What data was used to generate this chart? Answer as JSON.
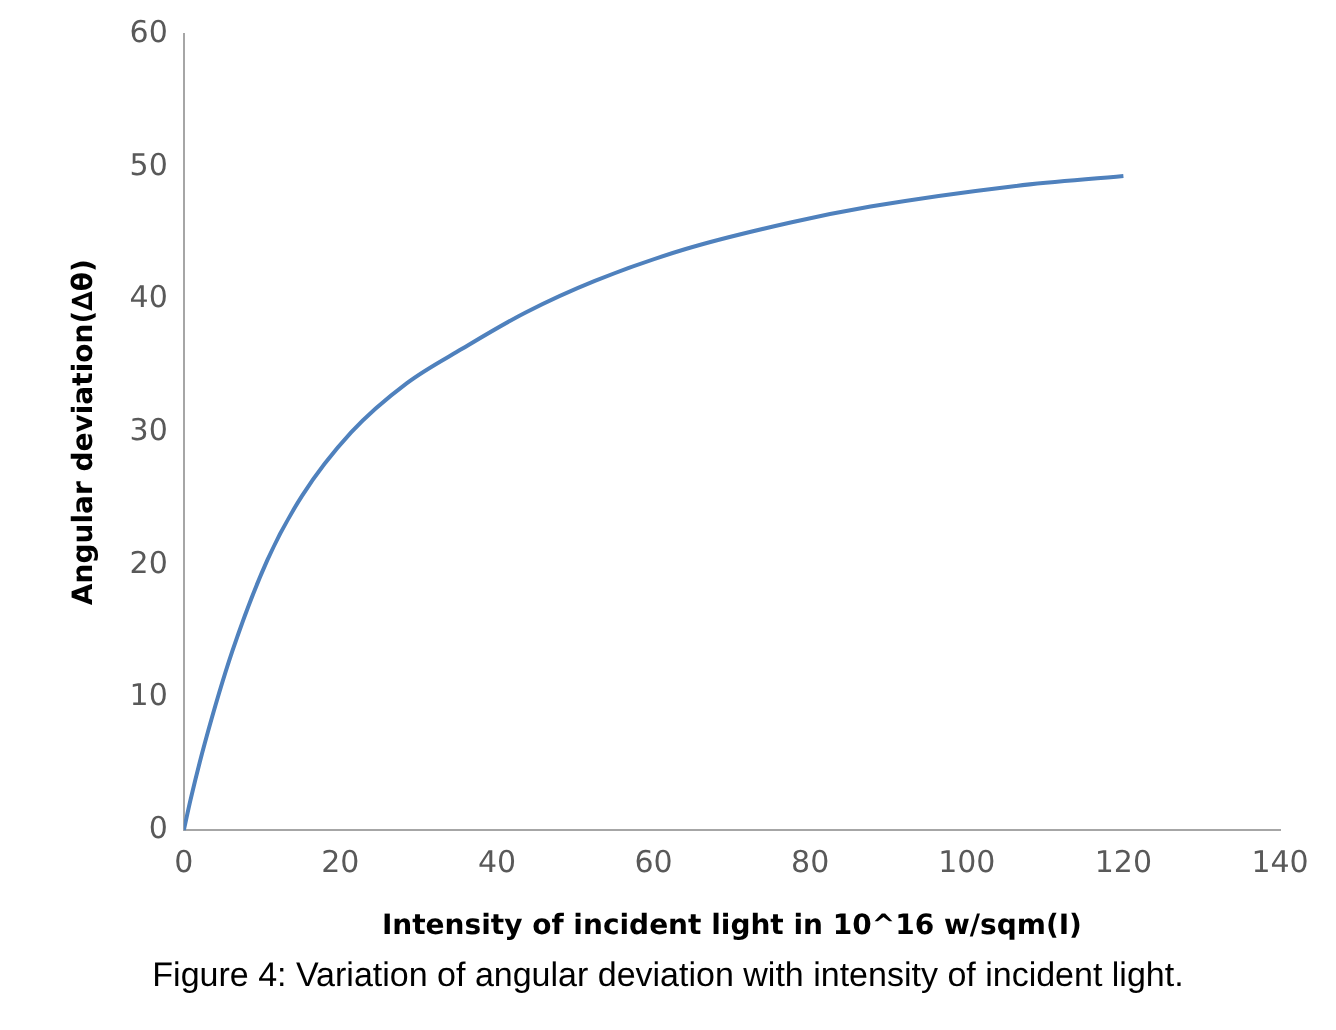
{
  "chart_data": {
    "type": "line",
    "xlabel": "Intensity of incident light in 10^16 w/sqm(I)",
    "ylabel": "Angular deviation(∆θ)",
    "annotations": [
      "Figure 4: Variation of angular deviation with intensity of incident light."
    ],
    "series": [
      {
        "color": "#4f81bd",
        "x": [
          0,
          0.9,
          2.7,
          6.2,
          10.7,
          15.1,
          21.4,
          28.5,
          35.6,
          43.6,
          52.5,
          64.1,
          77.5,
          87.7,
          105.5,
          120
        ],
        "values": [
          0,
          2.4,
          6.6,
          13.5,
          20.4,
          25.2,
          30.0,
          33.7,
          36.3,
          39.0,
          41.4,
          43.8,
          45.8,
          47.0,
          48.5,
          49.3
        ]
      }
    ],
    "xlim": [
      0,
      140
    ],
    "xticks": [
      0,
      20,
      40,
      60,
      80,
      100,
      120,
      140
    ],
    "ylim": [
      0,
      60
    ],
    "yticks": [
      0,
      10,
      20,
      30,
      40,
      50,
      60
    ],
    "grid": false,
    "legend": false,
    "marker": "none",
    "line_style": "solid"
  }
}
